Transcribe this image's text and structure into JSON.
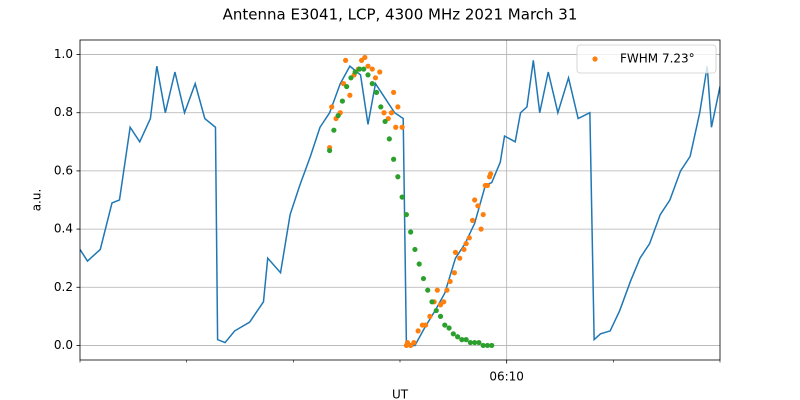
{
  "chart_data": {
    "type": "line",
    "title": "Antenna E3041, LCP, 4300 MHz 2021 March 31",
    "xlabel": "UT",
    "ylabel": "a.u.",
    "xlim": [
      6,
      12
    ],
    "ylim": [
      -0.05,
      1.05
    ],
    "xticks": [
      {
        "value": 10,
        "label": "06:10"
      }
    ],
    "xminorticks": [
      6,
      7,
      8,
      9,
      11,
      12
    ],
    "yticks": [
      {
        "value": 0,
        "label": "0.0"
      },
      0.2,
      0.4,
      0.6,
      0.8,
      {
        "value": 1,
        "label": "1.0"
      }
    ],
    "grid": true,
    "legend": "upper right",
    "series": [
      {
        "style": "line",
        "color": "#1f77b4",
        "x": [
          6.0,
          6.07,
          6.19,
          6.3,
          6.37,
          6.47,
          6.56,
          6.66,
          6.72,
          6.8,
          6.89,
          6.98,
          7.08,
          7.17,
          7.27,
          7.29,
          7.36,
          7.45,
          7.59,
          7.72,
          7.76,
          7.88,
          7.97,
          8.06,
          8.16,
          8.25,
          8.34,
          8.44,
          8.53,
          8.63,
          8.7,
          8.77,
          8.86,
          8.95,
          9.03,
          9.06,
          9.14,
          9.23,
          9.33,
          9.42,
          9.52,
          9.61,
          9.7,
          9.8,
          9.86,
          9.94,
          9.98,
          10.08,
          10.13,
          10.19,
          10.25,
          10.31,
          10.39,
          10.48,
          10.58,
          10.67,
          10.78,
          10.82,
          10.88,
          10.97,
          11.06,
          11.16,
          11.25,
          11.34,
          11.44,
          11.53,
          11.63,
          11.72,
          11.81,
          11.88,
          11.92,
          12.0
        ],
        "values": [
          0.33,
          0.29,
          0.33,
          0.49,
          0.5,
          0.75,
          0.7,
          0.78,
          0.96,
          0.8,
          0.94,
          0.8,
          0.9,
          0.78,
          0.75,
          0.02,
          0.01,
          0.05,
          0.08,
          0.15,
          0.3,
          0.25,
          0.45,
          0.55,
          0.65,
          0.75,
          0.8,
          0.9,
          0.96,
          0.93,
          0.76,
          0.9,
          0.85,
          0.8,
          0.78,
          0.0,
          0.0,
          0.06,
          0.12,
          0.18,
          0.3,
          0.35,
          0.42,
          0.55,
          0.56,
          0.63,
          0.72,
          0.7,
          0.8,
          0.82,
          0.98,
          0.8,
          0.94,
          0.8,
          0.92,
          0.78,
          0.8,
          0.02,
          0.04,
          0.05,
          0.12,
          0.22,
          0.3,
          0.35,
          0.45,
          0.5,
          0.6,
          0.65,
          0.8,
          0.96,
          0.75,
          0.89
        ]
      },
      {
        "style": "dots",
        "name": "FWHM 7.23°",
        "color": "#ff7f0e",
        "x": [
          8.34,
          8.36,
          8.4,
          8.44,
          8.47,
          8.49,
          8.53,
          8.57,
          8.61,
          8.64,
          8.67,
          8.7,
          8.74,
          8.77,
          8.81,
          8.85,
          8.89,
          8.92,
          8.94,
          8.96,
          8.98,
          9.02,
          9.06,
          9.07,
          9.1,
          9.13,
          9.17,
          9.21,
          9.24,
          9.28,
          9.32,
          9.35,
          9.38,
          9.41,
          9.44,
          9.47,
          9.51,
          9.52,
          9.56,
          9.6,
          9.62,
          9.65,
          9.68,
          9.7,
          9.73,
          9.76,
          9.78,
          9.8,
          9.82,
          9.84,
          9.85
        ],
        "values": [
          0.68,
          0.82,
          0.78,
          0.8,
          0.9,
          0.98,
          0.86,
          0.93,
          0.95,
          0.98,
          0.99,
          0.96,
          0.95,
          0.92,
          0.94,
          0.8,
          0.78,
          0.8,
          0.87,
          0.75,
          0.82,
          0.75,
          0.0,
          0.01,
          0.0,
          0.01,
          0.05,
          0.07,
          0.07,
          0.1,
          0.15,
          0.19,
          0.14,
          0.15,
          0.19,
          0.22,
          0.25,
          0.32,
          0.3,
          0.33,
          0.35,
          0.37,
          0.43,
          0.5,
          0.48,
          0.4,
          0.45,
          0.55,
          0.55,
          0.58,
          0.59
        ]
      },
      {
        "style": "dots",
        "color": "#2ca02c",
        "x": [
          8.34,
          8.38,
          8.42,
          8.46,
          8.5,
          8.54,
          8.58,
          8.62,
          8.66,
          8.7,
          8.74,
          8.78,
          8.82,
          8.86,
          8.9,
          8.94,
          8.98,
          9.02,
          9.06,
          9.1,
          9.14,
          9.18,
          9.22,
          9.26,
          9.3,
          9.34,
          9.38,
          9.42,
          9.46,
          9.5,
          9.54,
          9.58,
          9.62,
          9.66,
          9.7,
          9.74,
          9.78,
          9.82,
          9.86
        ],
        "values": [
          0.67,
          0.74,
          0.79,
          0.84,
          0.89,
          0.92,
          0.94,
          0.95,
          0.95,
          0.93,
          0.9,
          0.87,
          0.82,
          0.77,
          0.71,
          0.64,
          0.58,
          0.51,
          0.45,
          0.39,
          0.33,
          0.28,
          0.23,
          0.19,
          0.15,
          0.12,
          0.1,
          0.07,
          0.06,
          0.04,
          0.03,
          0.02,
          0.02,
          0.01,
          0.01,
          0.01,
          0.0,
          0.0,
          0.0
        ]
      }
    ]
  }
}
